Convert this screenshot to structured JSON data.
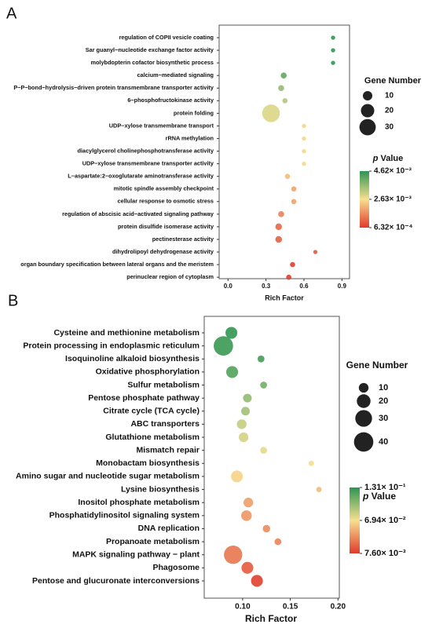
{
  "chart_data": [
    {
      "type": "bubble",
      "panel_label": "A",
      "xlabel": "Rich Factor",
      "categories": [
        "regulation of COPII vesicle coating",
        "Sar guanyl−nucleotide exchange factor activity",
        "molybdopterin cofactor biosynthetic process",
        "calcium−mediated signaling",
        "P−P−bond−hydrolysis−driven protein transmembrane transporter activity",
        "6−phosphofructokinase activity",
        "protein folding",
        "UDP−xylose transmembrane transport",
        "rRNA methylation",
        "diacylglycerol cholinephosphotransferase activity",
        "UDP−xylose transmembrane transporter activity",
        "L−aspartate:2−oxoglutarate aminotransferase activity",
        "mitotic spindle assembly checkpoint",
        "cellular response to osmotic stress",
        "regulation of abscisic acid−activated signaling pathway",
        "protein disulfide isomerase activity",
        "pectinesterase activity",
        "dihydrolipoyl dehydrogenase activity",
        "organ boundary specification between lateral organs and the meristem",
        "perinuclear region of cytoplasm"
      ],
      "x": [
        0.83,
        0.83,
        0.83,
        0.44,
        0.42,
        0.45,
        0.34,
        0.6,
        0.6,
        0.6,
        0.6,
        0.47,
        0.52,
        0.52,
        0.42,
        0.4,
        0.4,
        0.69,
        0.51,
        0.48
      ],
      "size": [
        2,
        2,
        2,
        4,
        4,
        3,
        35,
        2,
        2,
        2,
        2,
        3,
        3,
        3,
        4,
        5,
        5,
        2,
        3,
        3
      ],
      "pvalue": [
        0.0046,
        0.0046,
        0.0046,
        0.0041,
        0.0036,
        0.0033,
        0.0029,
        0.0025,
        0.0025,
        0.0025,
        0.0025,
        0.0022,
        0.0019,
        0.0019,
        0.0015,
        0.0012,
        0.0011,
        0.001,
        0.0007,
        0.00065
      ],
      "xlim": [
        -0.07,
        0.96
      ],
      "xticks": [
        {
          "value": 0,
          "label": "0.0"
        },
        0.3,
        0.6,
        0.9
      ],
      "size_legend": {
        "title": "Gene Number",
        "values": [
          10,
          20,
          30
        ]
      },
      "color_legend": {
        "title_italic": "p",
        "title": " Value",
        "colors": [
          "#e03a2a",
          "#f7e08f",
          "#2e9550"
        ],
        "clim": [
          0.000632,
          0.00462
        ],
        "ticks": [
          {
            "value": 0.00462,
            "label": "4.62× 10⁻³"
          },
          {
            "value": 0.00263,
            "label": "2.63× 10⁻³"
          },
          {
            "value": 0.000632,
            "label": "6.32× 10⁻⁴"
          }
        ]
      }
    },
    {
      "type": "bubble",
      "panel_label": "B",
      "xlabel": "Rich Factor",
      "categories": [
        "Cysteine and methionine metabolism",
        "Protein processing in endoplasmic reticulum",
        "Isoquinoline alkaloid biosynthesis",
        "Oxidative phosphorylation",
        "Sulfur metabolism",
        "Pentose phosphate pathway",
        "Citrate cycle (TCA cycle)",
        "ABC transporters",
        "Glutathione metabolism",
        "Mismatch repair",
        "Monobactam biosynthesis",
        "Amino sugar and nucleotide sugar metabolism",
        "Lysine biosynthesis",
        "Inositol phosphate metabolism",
        "Phosphatidylinositol signaling system",
        "DNA replication",
        "Propanoate metabolism",
        "MAPK signaling pathway − plant",
        "Phagosome",
        "Pentose and glucuronate interconversions"
      ],
      "x": [
        0.0882,
        0.0798,
        0.1193,
        0.089,
        0.122,
        0.105,
        0.103,
        0.099,
        0.101,
        0.122,
        0.172,
        0.094,
        0.18,
        0.106,
        0.104,
        0.125,
        0.137,
        0.09,
        0.105,
        0.115
      ],
      "size": [
        15,
        40,
        5,
        15,
        5,
        8,
        8,
        10,
        10,
        5,
        3,
        15,
        3,
        10,
        12,
        6,
        5,
        36,
        15,
        15
      ],
      "pvalue": [
        0.13,
        0.128,
        0.125,
        0.12,
        0.11,
        0.1,
        0.095,
        0.085,
        0.08,
        0.075,
        0.068,
        0.065,
        0.055,
        0.045,
        0.042,
        0.038,
        0.035,
        0.03,
        0.02,
        0.01
      ],
      "xlim": [
        0.0597,
        0.2014
      ],
      "xticks": [
        {
          "value": 0.1,
          "label": "0.10"
        },
        0.15,
        {
          "value": 0.2,
          "label": "0.20"
        }
      ],
      "size_legend": {
        "title": "Gene Number",
        "values": [
          10,
          20,
          30,
          40
        ]
      },
      "color_legend": {
        "title_italic": "p",
        "title": " Value",
        "colors": [
          "#e03a2a",
          "#f7e08f",
          "#2e9550"
        ],
        "clim": [
          0.0076,
          0.131
        ],
        "ticks": [
          {
            "value": 0.131,
            "label": "1.31× 10⁻¹"
          },
          {
            "value": 0.0694,
            "label": "6.94× 10⁻²"
          },
          {
            "value": 0.0076,
            "label": "7.60× 10⁻³"
          }
        ]
      }
    }
  ]
}
